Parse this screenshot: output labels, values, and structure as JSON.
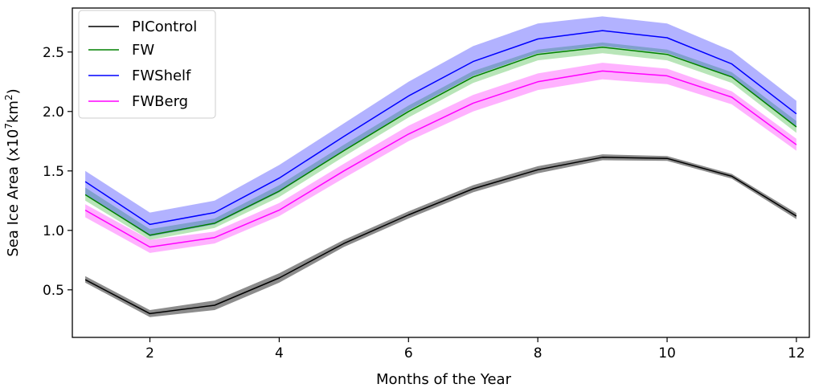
{
  "chart_data": {
    "type": "line",
    "title": "",
    "xlabel": "Months of the Year",
    "ylabel": {
      "main": "Sea Ice Area (x10",
      "exp1": "7",
      "mid": "km",
      "exp2": "2",
      "end": ")"
    },
    "xlim": [
      0.8,
      12.2
    ],
    "ylim": [
      0.1,
      2.87
    ],
    "xticks": [
      2,
      4,
      6,
      8,
      10,
      12
    ],
    "yticks": [
      0.5,
      1.0,
      1.5,
      2.0,
      2.5
    ],
    "ytick_labels": [
      "0.5",
      "1.0",
      "1.5",
      "2.0",
      "2.5"
    ],
    "x": [
      1,
      2,
      3,
      4,
      5,
      6,
      7,
      8,
      9,
      10,
      11,
      12
    ],
    "legend_position": "upper-left",
    "series": [
      {
        "name": "PIControl",
        "color": "#000000",
        "fill_color": "#000000",
        "fill_opacity": 0.45,
        "mean": [
          0.585,
          0.3,
          0.37,
          0.6,
          0.89,
          1.13,
          1.35,
          1.51,
          1.615,
          1.605,
          1.455,
          1.12
        ],
        "upper": [
          0.615,
          0.33,
          0.41,
          0.64,
          0.92,
          1.16,
          1.38,
          1.54,
          1.64,
          1.625,
          1.475,
          1.145
        ],
        "lower": [
          0.56,
          0.27,
          0.33,
          0.56,
          0.86,
          1.1,
          1.32,
          1.48,
          1.59,
          1.585,
          1.435,
          1.095
        ]
      },
      {
        "name": "FW",
        "color": "#008000",
        "fill_color": "#00a000",
        "fill_opacity": 0.28,
        "mean": [
          1.3,
          0.96,
          1.06,
          1.33,
          1.67,
          2.0,
          2.29,
          2.48,
          2.54,
          2.48,
          2.29,
          1.87
        ],
        "upper": [
          1.36,
          1.01,
          1.1,
          1.38,
          1.72,
          2.05,
          2.34,
          2.52,
          2.58,
          2.52,
          2.33,
          1.92
        ],
        "lower": [
          1.25,
          0.92,
          1.02,
          1.28,
          1.62,
          1.95,
          2.24,
          2.43,
          2.49,
          2.43,
          2.24,
          1.82
        ]
      },
      {
        "name": "FWShelf",
        "color": "#0000ff",
        "fill_color": "#0000ff",
        "fill_opacity": 0.3,
        "mean": [
          1.41,
          1.05,
          1.15,
          1.44,
          1.79,
          2.13,
          2.42,
          2.61,
          2.68,
          2.62,
          2.4,
          1.98
        ],
        "upper": [
          1.5,
          1.15,
          1.25,
          1.55,
          1.9,
          2.25,
          2.55,
          2.74,
          2.8,
          2.74,
          2.51,
          2.09
        ],
        "lower": [
          1.3,
          0.95,
          1.05,
          1.32,
          1.67,
          2.01,
          2.3,
          2.49,
          2.55,
          2.49,
          2.29,
          1.87
        ]
      },
      {
        "name": "FWBerg",
        "color": "#ff00ff",
        "fill_color": "#ff00ff",
        "fill_opacity": 0.3,
        "mean": [
          1.17,
          0.86,
          0.94,
          1.17,
          1.5,
          1.81,
          2.07,
          2.25,
          2.34,
          2.3,
          2.12,
          1.72
        ],
        "upper": [
          1.22,
          0.92,
          0.99,
          1.23,
          1.56,
          1.88,
          2.14,
          2.32,
          2.41,
          2.36,
          2.17,
          1.77
        ],
        "lower": [
          1.11,
          0.81,
          0.89,
          1.12,
          1.44,
          1.75,
          2.0,
          2.18,
          2.27,
          2.23,
          2.06,
          1.67
        ]
      }
    ]
  }
}
